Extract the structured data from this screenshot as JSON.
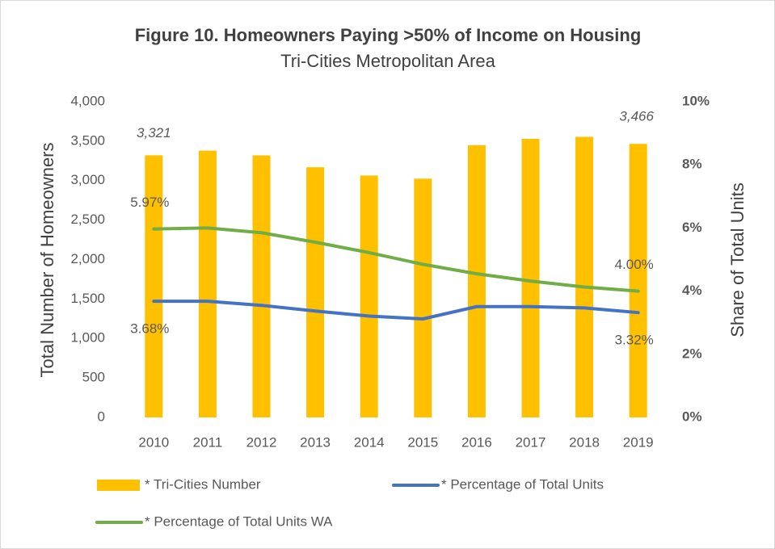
{
  "chart_data": {
    "type": "bar",
    "title": "Figure 10. Homeowners Paying >50% of Income on Housing",
    "subtitle": "Tri-Cities Metropolitan Area",
    "y_label": "Total Number of Homeowners",
    "y2_label": "Share of Total Units",
    "categories": [
      "2010",
      "2011",
      "2012",
      "2013",
      "2014",
      "2015",
      "2016",
      "2017",
      "2018",
      "2019"
    ],
    "series": [
      {
        "name": "* Tri-Cities Number",
        "type": "bar",
        "color": "#FFC000",
        "values": [
          3321,
          3380,
          3320,
          3170,
          3065,
          3025,
          3450,
          3530,
          3555,
          3466
        ],
        "value_labels": [
          "3,321",
          null,
          null,
          null,
          null,
          null,
          null,
          null,
          null,
          "3,466"
        ]
      },
      {
        "name": "* Percentage of Total Units",
        "type": "line",
        "axis": "y2",
        "color": "#4472C4",
        "values": [
          3.68,
          3.68,
          3.55,
          3.37,
          3.21,
          3.12,
          3.51,
          3.51,
          3.47,
          3.32
        ],
        "value_labels": [
          "3.68%",
          null,
          null,
          null,
          null,
          null,
          null,
          null,
          null,
          "3.32%"
        ]
      },
      {
        "name": "* Percentage of Total Units WA",
        "type": "line",
        "axis": "y2",
        "color": "#70AD47",
        "values": [
          5.97,
          6.0,
          5.85,
          5.55,
          5.22,
          4.85,
          4.55,
          4.32,
          4.13,
          4.0
        ],
        "value_labels": [
          "5.97%",
          null,
          null,
          null,
          null,
          null,
          null,
          null,
          null,
          "4.00%"
        ]
      }
    ],
    "ylim": [
      0,
      4000
    ],
    "yticks": [
      0,
      500,
      {
        "value": 1000,
        "label": "1,000"
      },
      {
        "value": 1500,
        "label": "1,500"
      },
      {
        "value": 2000,
        "label": "2,000"
      },
      {
        "value": 2500,
        "label": "2,500"
      },
      {
        "value": 3000,
        "label": "3,000"
      },
      {
        "value": 3500,
        "label": "3,500"
      },
      {
        "value": 4000,
        "label": "4,000"
      }
    ],
    "y2lim": [
      0,
      10
    ],
    "y2ticks": [
      {
        "value": 0,
        "label": "0%"
      },
      {
        "value": 2,
        "label": "2%"
      },
      {
        "value": 4,
        "label": "4%"
      },
      {
        "value": 6,
        "label": "6%"
      },
      {
        "value": 8,
        "label": "8%"
      },
      {
        "value": 10,
        "label": "10%"
      }
    ],
    "grid": false,
    "legend": "bottom"
  }
}
